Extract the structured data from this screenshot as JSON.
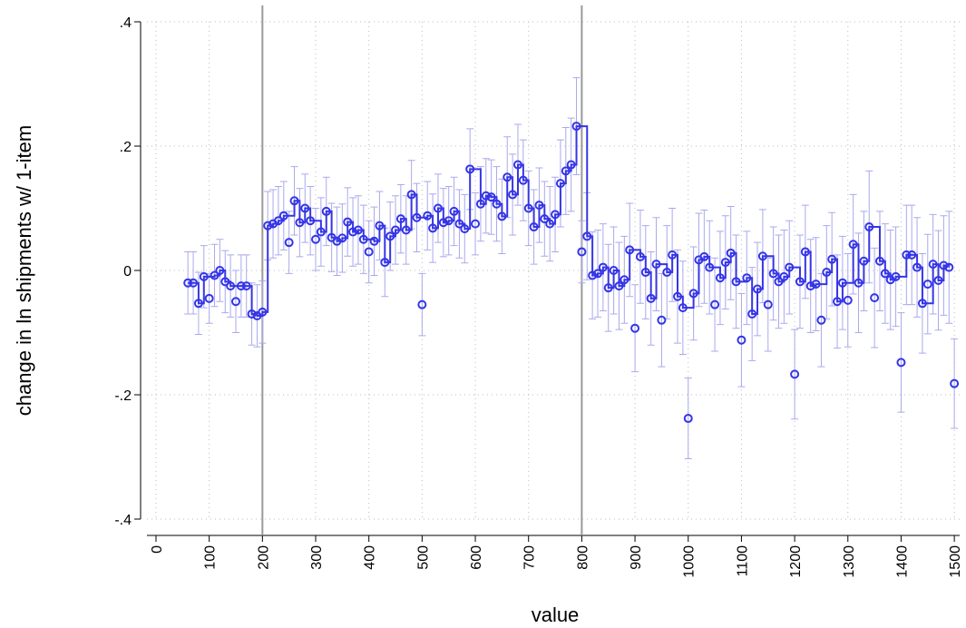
{
  "chart_data": {
    "type": "scatter",
    "x_label": "value",
    "y_label": "change in ln shipments w/ 1-item",
    "xlim": [
      -17,
      1510
    ],
    "ylim": [
      -0.4,
      0.4
    ],
    "xticks": [
      0,
      100,
      200,
      300,
      400,
      500,
      600,
      700,
      800,
      900,
      1000,
      1100,
      1200,
      1300,
      1400,
      1500
    ],
    "yticks": [
      {
        "value": -0.4,
        "label": "-.4"
      },
      {
        "value": -0.2,
        "label": "-.2"
      },
      0,
      {
        "value": 0.2,
        "label": ".2"
      },
      {
        "value": 0.4,
        "label": ".4"
      }
    ],
    "grid": true,
    "xlines": [
      200,
      800
    ],
    "color": "#3535e6",
    "error_color": "#a9a9ee",
    "x": [
      60,
      70,
      80,
      90,
      100,
      110,
      120,
      130,
      140,
      150,
      160,
      170,
      180,
      190,
      200,
      210,
      220,
      230,
      240,
      250,
      260,
      270,
      280,
      290,
      300,
      310,
      320,
      330,
      340,
      350,
      360,
      370,
      380,
      390,
      400,
      410,
      420,
      430,
      440,
      450,
      460,
      470,
      480,
      490,
      500,
      510,
      520,
      530,
      540,
      550,
      560,
      570,
      580,
      590,
      600,
      610,
      620,
      630,
      640,
      650,
      660,
      670,
      680,
      690,
      700,
      710,
      720,
      730,
      740,
      750,
      760,
      770,
      780,
      790,
      800,
      810,
      820,
      830,
      840,
      850,
      860,
      870,
      880,
      890,
      900,
      910,
      920,
      930,
      940,
      950,
      960,
      970,
      980,
      990,
      1000,
      1010,
      1020,
      1030,
      1040,
      1050,
      1060,
      1070,
      1080,
      1090,
      1100,
      1110,
      1120,
      1130,
      1140,
      1150,
      1160,
      1170,
      1180,
      1190,
      1200,
      1210,
      1220,
      1230,
      1240,
      1250,
      1260,
      1270,
      1280,
      1290,
      1300,
      1310,
      1320,
      1330,
      1340,
      1350,
      1360,
      1370,
      1380,
      1390,
      1400,
      1410,
      1420,
      1430,
      1440,
      1450,
      1460,
      1470,
      1480,
      1490,
      1500
    ],
    "values": [
      -0.02,
      -0.02,
      -0.053,
      -0.01,
      -0.045,
      -0.008,
      0.0,
      -0.018,
      -0.025,
      -0.05,
      -0.025,
      -0.025,
      -0.07,
      -0.073,
      -0.067,
      0.072,
      0.075,
      0.08,
      0.088,
      0.045,
      0.112,
      0.077,
      0.1,
      0.08,
      0.05,
      0.062,
      0.095,
      0.053,
      0.047,
      0.052,
      0.078,
      0.062,
      0.065,
      0.05,
      0.03,
      0.047,
      0.072,
      0.013,
      0.055,
      0.065,
      0.083,
      0.065,
      0.122,
      0.085,
      -0.055,
      0.088,
      0.068,
      0.1,
      0.077,
      0.08,
      0.095,
      0.075,
      0.067,
      0.163,
      0.075,
      0.107,
      0.12,
      0.118,
      0.107,
      0.087,
      0.15,
      0.122,
      0.17,
      0.145,
      0.1,
      0.07,
      0.105,
      0.083,
      0.075,
      0.09,
      0.14,
      0.16,
      0.17,
      0.232,
      0.03,
      0.055,
      -0.008,
      -0.005,
      0.005,
      -0.028,
      0.0,
      -0.025,
      -0.015,
      0.033,
      -0.093,
      0.022,
      -0.003,
      -0.045,
      0.01,
      -0.08,
      -0.003,
      0.025,
      -0.042,
      -0.06,
      -0.238,
      -0.037,
      0.017,
      0.022,
      0.005,
      -0.055,
      -0.012,
      0.013,
      0.028,
      -0.018,
      -0.112,
      -0.012,
      -0.07,
      -0.03,
      0.023,
      -0.055,
      -0.005,
      -0.018,
      -0.01,
      0.005,
      -0.167,
      -0.018,
      0.03,
      -0.025,
      -0.022,
      -0.08,
      -0.003,
      0.018,
      -0.05,
      -0.02,
      -0.048,
      0.042,
      -0.02,
      0.015,
      0.07,
      -0.044,
      0.015,
      -0.005,
      -0.015,
      -0.01,
      -0.148,
      0.025,
      0.025,
      0.005,
      -0.053,
      -0.022,
      0.01,
      -0.016,
      0.008,
      0.005,
      -0.182
    ],
    "errors": [
      0.05,
      0.05,
      0.05,
      0.05,
      0.04,
      0.05,
      0.05,
      0.05,
      0.05,
      0.05,
      0.05,
      0.05,
      0.05,
      0.05,
      0.05,
      0.055,
      0.055,
      0.055,
      0.055,
      0.05,
      0.055,
      0.055,
      0.055,
      0.055,
      0.05,
      0.055,
      0.055,
      0.055,
      0.055,
      0.055,
      0.055,
      0.055,
      0.055,
      0.055,
      0.05,
      0.055,
      0.055,
      0.055,
      0.055,
      0.055,
      0.055,
      0.055,
      0.055,
      0.055,
      0.05,
      0.055,
      0.055,
      0.055,
      0.055,
      0.055,
      0.055,
      0.055,
      0.055,
      0.065,
      0.05,
      0.06,
      0.06,
      0.06,
      0.06,
      0.06,
      0.065,
      0.065,
      0.065,
      0.065,
      0.06,
      0.06,
      0.06,
      0.06,
      0.06,
      0.06,
      0.07,
      0.07,
      0.075,
      0.078,
      0.05,
      0.07,
      0.07,
      0.07,
      0.07,
      0.07,
      0.07,
      0.07,
      0.07,
      0.075,
      0.07,
      0.075,
      0.075,
      0.075,
      0.075,
      0.075,
      0.075,
      0.075,
      0.075,
      0.075,
      0.065,
      0.075,
      0.075,
      0.075,
      0.075,
      0.075,
      0.075,
      0.075,
      0.075,
      0.075,
      0.075,
      0.075,
      0.075,
      0.075,
      0.075,
      0.075,
      0.075,
      0.075,
      0.075,
      0.075,
      0.072,
      0.075,
      0.075,
      0.075,
      0.075,
      0.075,
      0.075,
      0.075,
      0.075,
      0.075,
      0.075,
      0.08,
      0.08,
      0.08,
      0.09,
      0.08,
      0.08,
      0.08,
      0.08,
      0.08,
      0.08,
      0.08,
      0.08,
      0.08,
      0.08,
      0.08,
      0.08,
      0.08,
      0.08,
      0.09,
      0.072
    ],
    "step": {
      "x": [
        60,
        70,
        80,
        90,
        110,
        120,
        130,
        140,
        160,
        170,
        180,
        190,
        200,
        210,
        220,
        230,
        240,
        260,
        270,
        280,
        290,
        310,
        320,
        330,
        340,
        350,
        360,
        370,
        380,
        390,
        410,
        420,
        430,
        440,
        450,
        460,
        470,
        480,
        490,
        510,
        520,
        530,
        540,
        550,
        560,
        570,
        580,
        590,
        610,
        620,
        630,
        640,
        650,
        660,
        670,
        680,
        690,
        700,
        710,
        720,
        730,
        740,
        750,
        760,
        770,
        780,
        790,
        810,
        820,
        830,
        840,
        850,
        860,
        870,
        880,
        890,
        910,
        920,
        930,
        940,
        960,
        970,
        980,
        990,
        1010,
        1020,
        1030,
        1040,
        1060,
        1070,
        1080,
        1090,
        1110,
        1120,
        1130,
        1140,
        1160,
        1170,
        1180,
        1190,
        1210,
        1220,
        1230,
        1240,
        1260,
        1270,
        1280,
        1290,
        1310,
        1320,
        1330,
        1340,
        1360,
        1370,
        1380,
        1390,
        1410,
        1420,
        1430,
        1440,
        1460,
        1470,
        1480,
        1490
      ],
      "values": [
        -0.02,
        -0.02,
        -0.053,
        -0.01,
        -0.008,
        0.0,
        -0.018,
        -0.025,
        -0.025,
        -0.025,
        -0.07,
        -0.073,
        -0.067,
        0.072,
        0.075,
        0.08,
        0.088,
        0.112,
        0.077,
        0.1,
        0.08,
        0.062,
        0.095,
        0.053,
        0.047,
        0.052,
        0.078,
        0.062,
        0.065,
        0.05,
        0.047,
        0.072,
        0.013,
        0.055,
        0.065,
        0.083,
        0.065,
        0.122,
        0.085,
        0.088,
        0.068,
        0.1,
        0.077,
        0.08,
        0.095,
        0.075,
        0.067,
        0.163,
        0.107,
        0.12,
        0.118,
        0.107,
        0.087,
        0.15,
        0.122,
        0.17,
        0.145,
        0.1,
        0.07,
        0.105,
        0.083,
        0.075,
        0.09,
        0.14,
        0.16,
        0.17,
        0.232,
        0.055,
        -0.008,
        -0.005,
        0.005,
        -0.028,
        0.0,
        -0.025,
        -0.015,
        0.033,
        0.022,
        -0.003,
        -0.045,
        0.01,
        -0.003,
        0.025,
        -0.042,
        -0.06,
        -0.037,
        0.017,
        0.022,
        0.005,
        -0.012,
        0.013,
        0.028,
        -0.018,
        -0.012,
        -0.07,
        -0.03,
        0.023,
        -0.005,
        -0.018,
        -0.01,
        0.005,
        -0.018,
        0.03,
        -0.025,
        -0.022,
        -0.003,
        0.018,
        -0.05,
        -0.02,
        0.042,
        -0.02,
        0.015,
        0.07,
        0.015,
        -0.005,
        -0.015,
        -0.01,
        0.025,
        0.025,
        0.005,
        -0.053,
        0.01,
        -0.016,
        0.008,
        0.005
      ]
    }
  }
}
